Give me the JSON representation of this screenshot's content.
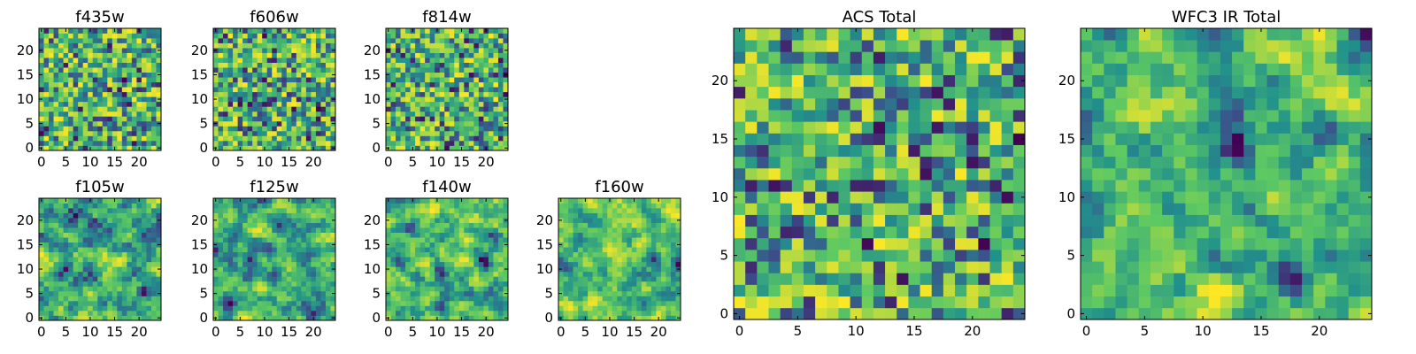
{
  "chart_data": [
    {
      "type": "heatmap",
      "title": "f435w",
      "xticks": [
        "0",
        "5",
        "10",
        "15",
        "20"
      ],
      "yticks": [
        "0",
        "5",
        "10",
        "15",
        "20"
      ],
      "xlim": [
        -0.5,
        24.5
      ],
      "ylim": [
        -0.5,
        24.5
      ],
      "colormap": "viridis",
      "grid": false,
      "texture": "uniform-noise"
    },
    {
      "type": "heatmap",
      "title": "f606w",
      "xticks": [
        "0",
        "5",
        "10",
        "15",
        "20"
      ],
      "yticks": [
        "0",
        "5",
        "10",
        "15",
        "20"
      ],
      "xlim": [
        -0.5,
        24.5
      ],
      "ylim": [
        -0.5,
        24.5
      ],
      "colormap": "viridis",
      "grid": false,
      "texture": "uniform-noise"
    },
    {
      "type": "heatmap",
      "title": "f814w",
      "xticks": [
        "0",
        "5",
        "10",
        "15",
        "20"
      ],
      "yticks": [
        "0",
        "5",
        "10",
        "15",
        "20"
      ],
      "xlim": [
        -0.5,
        24.5
      ],
      "ylim": [
        -0.5,
        24.5
      ],
      "colormap": "viridis",
      "grid": false,
      "texture": "uniform-noise"
    },
    {
      "type": "heatmap",
      "title": "f105w",
      "xticks": [
        "0",
        "5",
        "10",
        "15",
        "20"
      ],
      "yticks": [
        "0",
        "5",
        "10",
        "15",
        "20"
      ],
      "xlim": [
        -0.5,
        24.5
      ],
      "ylim": [
        -0.5,
        24.5
      ],
      "colormap": "viridis",
      "grid": false,
      "texture": "correlated-noise"
    },
    {
      "type": "heatmap",
      "title": "f125w",
      "xticks": [
        "0",
        "5",
        "10",
        "15",
        "20"
      ],
      "yticks": [
        "0",
        "5",
        "10",
        "15",
        "20"
      ],
      "xlim": [
        -0.5,
        24.5
      ],
      "ylim": [
        -0.5,
        24.5
      ],
      "colormap": "viridis",
      "grid": false,
      "texture": "correlated-noise"
    },
    {
      "type": "heatmap",
      "title": "f140w",
      "xticks": [
        "0",
        "5",
        "10",
        "15",
        "20"
      ],
      "yticks": [
        "0",
        "5",
        "10",
        "15",
        "20"
      ],
      "xlim": [
        -0.5,
        24.5
      ],
      "ylim": [
        -0.5,
        24.5
      ],
      "colormap": "viridis",
      "grid": false,
      "texture": "correlated-noise"
    },
    {
      "type": "heatmap",
      "title": "f160w",
      "xticks": [
        "0",
        "5",
        "10",
        "15",
        "20"
      ],
      "yticks": [
        "0",
        "5",
        "10",
        "15",
        "20"
      ],
      "xlim": [
        -0.5,
        24.5
      ],
      "ylim": [
        -0.5,
        24.5
      ],
      "colormap": "viridis",
      "grid": false,
      "texture": "correlated-noise"
    },
    {
      "type": "heatmap",
      "title": "ACS Total",
      "xticks": [
        "0",
        "5",
        "10",
        "15",
        "20"
      ],
      "yticks": [
        "0",
        "5",
        "10",
        "15",
        "20"
      ],
      "xlim": [
        -0.5,
        24.5
      ],
      "ylim": [
        -0.5,
        24.5
      ],
      "colormap": "viridis",
      "grid": false,
      "texture": "uniform-noise"
    },
    {
      "type": "heatmap",
      "title": "WFC3 IR Total",
      "xticks": [
        "0",
        "5",
        "10",
        "15",
        "20"
      ],
      "yticks": [
        "0",
        "5",
        "10",
        "15",
        "20"
      ],
      "xlim": [
        -0.5,
        24.5
      ],
      "ylim": [
        -0.5,
        24.5
      ],
      "colormap": "viridis",
      "grid": false,
      "texture": "correlated-noise"
    }
  ],
  "colormap_stops": [
    "#440154",
    "#3b528b",
    "#21918c",
    "#5ec962",
    "#fde725"
  ]
}
